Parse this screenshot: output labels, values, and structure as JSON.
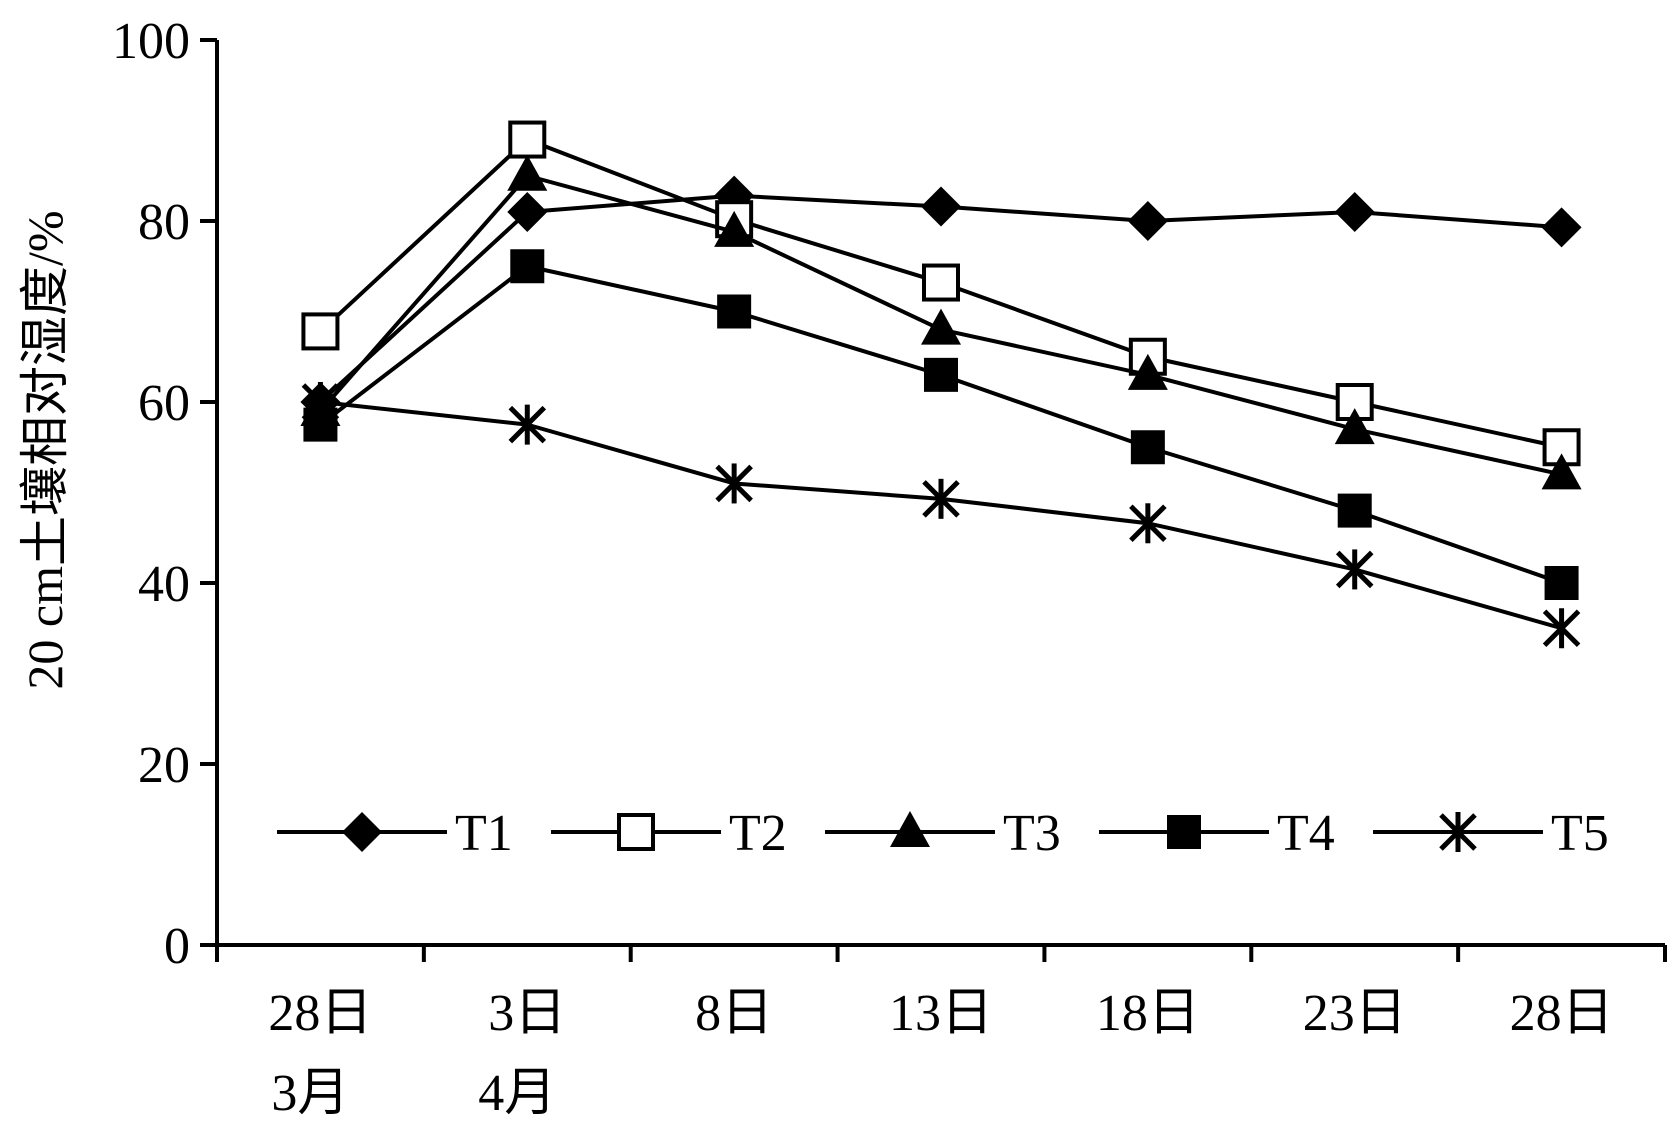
{
  "chart_data": {
    "type": "line",
    "ylabel": "20 cm土壤相对湿度/%",
    "xlabel": "",
    "ylim": [
      0,
      100
    ],
    "yticks": [
      0,
      20,
      40,
      60,
      80,
      100
    ],
    "x_tick_labels": [
      "28日",
      "3日",
      "8日",
      "13日",
      "18日",
      "23日",
      "28日"
    ],
    "month_labels": [
      {
        "label": "3月",
        "under_index": 0
      },
      {
        "label": "4月",
        "under_index": 1
      }
    ],
    "x_domain": [
      -0.5,
      6.5
    ],
    "x_points": [
      0,
      1,
      2,
      3,
      4,
      5,
      6
    ],
    "grid": false,
    "legend_position": "inside-bottom",
    "line_color": "#000000",
    "series": [
      {
        "name": "T1",
        "marker": "diamond",
        "values": [
          60,
          81,
          82.8,
          81.6,
          80,
          81,
          79.3
        ]
      },
      {
        "name": "T2",
        "marker": "square-open",
        "values": [
          67.8,
          89,
          80.2,
          73.2,
          65,
          60,
          55
        ]
      },
      {
        "name": "T3",
        "marker": "triangle",
        "values": [
          59,
          85,
          78.8,
          68,
          63,
          57,
          52
        ]
      },
      {
        "name": "T4",
        "marker": "square",
        "values": [
          57.5,
          75,
          70,
          63,
          55,
          48,
          40
        ]
      },
      {
        "name": "T5",
        "marker": "asterisk",
        "values": [
          60,
          57.5,
          51,
          49.3,
          46.6,
          41.5,
          35
        ]
      }
    ]
  }
}
